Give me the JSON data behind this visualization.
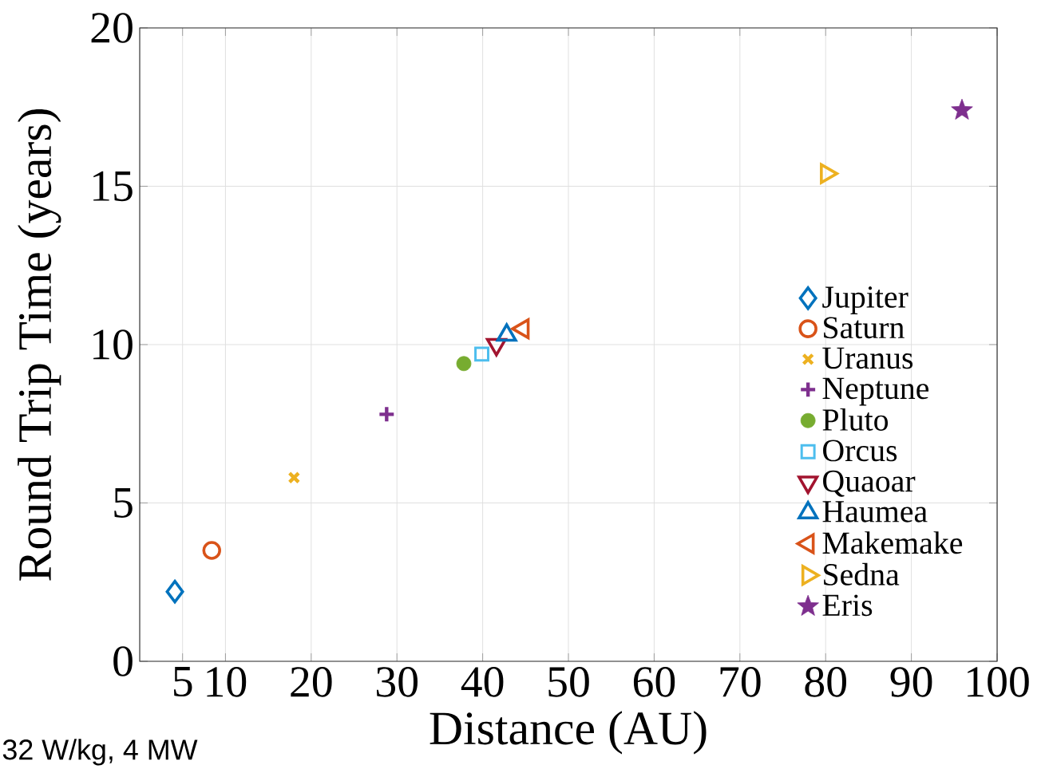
{
  "chart_data": {
    "type": "scatter",
    "xlabel": "Distance (AU)",
    "ylabel": "Round Trip Time (years)",
    "xlim": [
      0,
      100
    ],
    "ylim": [
      0,
      20
    ],
    "xticks": [
      5,
      10,
      20,
      30,
      40,
      50,
      60,
      70,
      80,
      90,
      100
    ],
    "yticks": [
      0,
      5,
      10,
      15,
      20
    ],
    "grid": true,
    "legend": "right",
    "annotations": [
      "32 W/kg, 4 MW"
    ],
    "series": [
      {
        "name": "Jupiter",
        "color": "#0072bd",
        "marker": "diamond",
        "x": [
          4.1
        ],
        "values": [
          2.2
        ]
      },
      {
        "name": "Saturn",
        "color": "#d95319",
        "marker": "circle",
        "x": [
          8.4
        ],
        "values": [
          3.5
        ]
      },
      {
        "name": "Uranus",
        "color": "#edb120",
        "marker": "x",
        "x": [
          18.0
        ],
        "values": [
          5.8
        ]
      },
      {
        "name": "Neptune",
        "color": "#7e2f8e",
        "marker": "plus",
        "x": [
          28.8
        ],
        "values": [
          7.8
        ]
      },
      {
        "name": "Pluto",
        "color": "#77ac30",
        "marker": "circle-filled",
        "x": [
          37.8
        ],
        "values": [
          9.4
        ]
      },
      {
        "name": "Orcus",
        "color": "#4dbeee",
        "marker": "square",
        "x": [
          39.9
        ],
        "values": [
          9.7
        ]
      },
      {
        "name": "Quaoar",
        "color": "#a2142f",
        "marker": "triangle-down",
        "x": [
          41.6
        ],
        "values": [
          10.0
        ]
      },
      {
        "name": "Haumea",
        "color": "#0072bd",
        "marker": "triangle",
        "x": [
          42.8
        ],
        "values": [
          10.3
        ]
      },
      {
        "name": "Makemake",
        "color": "#d95319",
        "marker": "triangle-left",
        "x": [
          44.7
        ],
        "values": [
          10.5
        ]
      },
      {
        "name": "Sedna",
        "color": "#edb120",
        "marker": "triangle-right",
        "x": [
          80.1
        ],
        "values": [
          15.4
        ]
      },
      {
        "name": "Eris",
        "color": "#7e2f8e",
        "marker": "star",
        "x": [
          95.9
        ],
        "values": [
          17.4
        ]
      }
    ]
  }
}
